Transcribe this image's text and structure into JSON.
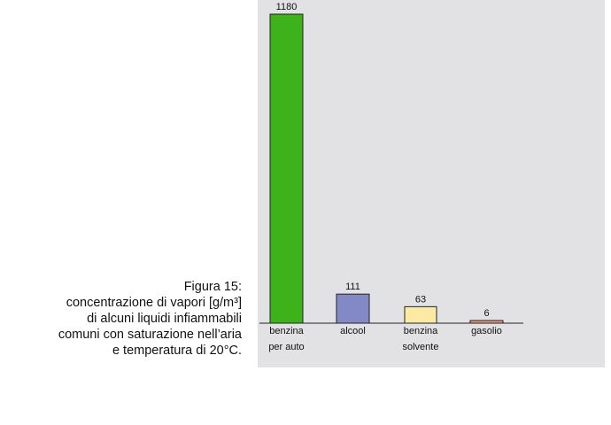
{
  "chart_data": {
    "type": "bar",
    "categories": [
      [
        "benzina",
        "per auto"
      ],
      [
        "alcool"
      ],
      [
        "benzina",
        "solvente"
      ],
      [
        "gasolio"
      ]
    ],
    "values": [
      1180,
      111,
      63,
      6
    ],
    "value_labels": [
      "1180",
      "111",
      "63",
      "6"
    ],
    "colors": [
      "#3eb21b",
      "#8389c6",
      "#fce9a4",
      "#ee9a80"
    ],
    "ylim": [
      0,
      1180
    ],
    "grid": false,
    "legend": "none"
  },
  "caption": {
    "title": "Figura 15:",
    "line1": "concentrazione di vapori [g/m³]",
    "line2": "di alcuni liquidi infiammabili",
    "line3": "comuni con saturazione nell’aria",
    "line4": "e temperatura di 20°C."
  },
  "colors": {
    "panel_background": "#e2e2e4",
    "axis": "#222222"
  }
}
